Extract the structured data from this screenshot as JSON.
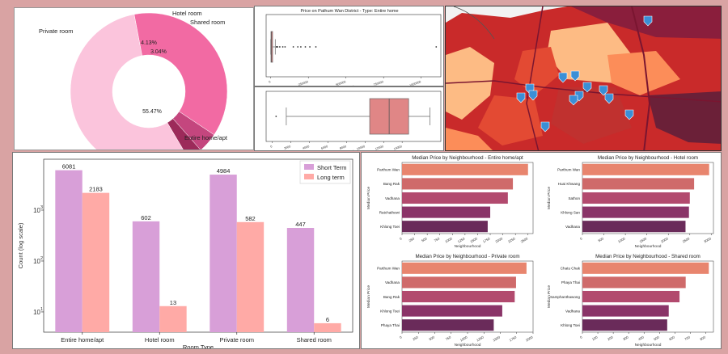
{
  "chart_data": [
    {
      "type": "pie",
      "donut": true,
      "labels": [
        "Private room",
        "Hotel room",
        "Shared room",
        "Entire home/apt"
      ],
      "values": [
        37.36,
        4.13,
        3.04,
        55.47
      ],
      "pct_labels": [
        "37.36%",
        "4.13%",
        "3.04%",
        "55.47%"
      ],
      "colors": [
        "#f26aa3",
        "#c4467e",
        "#9c2a5a",
        "#fbc4dc"
      ]
    },
    {
      "type": "box",
      "title": "Price on Pathum Wan District - Type: Entire home",
      "xlabel": "Price",
      "xticks": [
        "0",
        "250000",
        "500000",
        "750000",
        "1000000"
      ],
      "box": {
        "min": 0,
        "q1": 1500,
        "median": 4000,
        "q3": 12000,
        "max": 30000
      },
      "outliers": [
        38000,
        41000,
        45000,
        60000,
        80000,
        95000,
        150000,
        180000,
        200000,
        230000,
        260000,
        300000,
        1100000
      ],
      "xlim": [
        -20000,
        1120000
      ]
    },
    {
      "type": "box",
      "xlabel": "Price",
      "xticks": [
        "0",
        "2000",
        "4000",
        "6000",
        "8000",
        "10000",
        "12000",
        "14000"
      ],
      "box": {
        "min": 1500,
        "q1": 10500,
        "median": 12600,
        "q3": 14700,
        "max": 17000
      },
      "outliers": [
        400
      ],
      "xlim": [
        -500,
        18000
      ]
    },
    {
      "type": "bar",
      "categories": [
        "Entire home/apt",
        "Hotel room",
        "Private room",
        "Shared room"
      ],
      "series": [
        {
          "name": "Short Term",
          "values": [
            6081,
            602,
            4984,
            447
          ],
          "color": "#d89fd8"
        },
        {
          "name": "Long term",
          "values": [
            2183,
            13,
            582,
            6
          ],
          "color": "#ffaaa6"
        }
      ],
      "xlabel": "Room Type",
      "ylabel": "Count (log scale)",
      "yscale": "log",
      "ylim": [
        4,
        10000
      ],
      "legend": "top-right"
    },
    {
      "type": "bar",
      "orientation": "horizontal",
      "title": "Median Price by Neighbourhood - Entire home/apt",
      "xlabel": "Neighbourhood",
      "ylabel": "Median Price",
      "categories": [
        "Parthum Wan",
        "Bang Rak",
        "Vadhana",
        "Ratchathewi",
        "Khlong Toei"
      ],
      "values": [
        2500,
        2200,
        2100,
        1750,
        1700
      ],
      "xticks": [
        0,
        250,
        500,
        750,
        1000,
        1250,
        1500,
        1750,
        2000,
        2250,
        2500
      ],
      "xlim": [
        0,
        2600
      ]
    },
    {
      "type": "bar",
      "orientation": "horizontal",
      "title": "Median Price by Neighbourhood - Hotel room",
      "xlabel": "Neighbourhood",
      "ylabel": "Median Price",
      "categories": [
        "Parthum Wan",
        "Huai Khwang",
        "Sathon",
        "Khlong San",
        "Vadhana"
      ],
      "values": [
        2950,
        2600,
        2500,
        2480,
        2400
      ],
      "xticks": [
        0,
        500,
        1000,
        1500,
        2000,
        2500,
        3000
      ],
      "xlim": [
        0,
        3050
      ]
    },
    {
      "type": "bar",
      "orientation": "horizontal",
      "title": "Median Price by Neighbourhood - Private room",
      "xlabel": "Neighbourhood",
      "ylabel": "Median Price",
      "categories": [
        "Parthum Wan",
        "Vadhana",
        "Bang Rak",
        "Khlong Toei",
        "Phaya Thai"
      ],
      "values": [
        1900,
        1740,
        1720,
        1530,
        1400
      ],
      "xticks": [
        0,
        250,
        500,
        750,
        1000,
        1250,
        1500,
        1750,
        2000
      ],
      "xlim": [
        0,
        2000
      ]
    },
    {
      "type": "bar",
      "orientation": "horizontal",
      "title": "Median Price by Neighbourhood - Shared room",
      "xlabel": "Neighbourhood",
      "ylabel": "Median Price",
      "categories": [
        "Chatu Chak",
        "Phaya Thai",
        "Samphanthawong",
        "Vadhana",
        "Khlong Toei"
      ],
      "values": [
        820,
        670,
        630,
        560,
        550
      ],
      "xticks": [
        0,
        100,
        200,
        300,
        400,
        500,
        600,
        700,
        800
      ],
      "xlim": [
        0,
        850
      ]
    }
  ],
  "map": {
    "colors": {
      "dark": "#8a1e3c",
      "red": "#c92a2a",
      "mid": "#e34a33",
      "orange": "#fc8d59",
      "light": "#fdbb84"
    },
    "marker_color": "#3b8fd6",
    "marker_count": 13
  }
}
